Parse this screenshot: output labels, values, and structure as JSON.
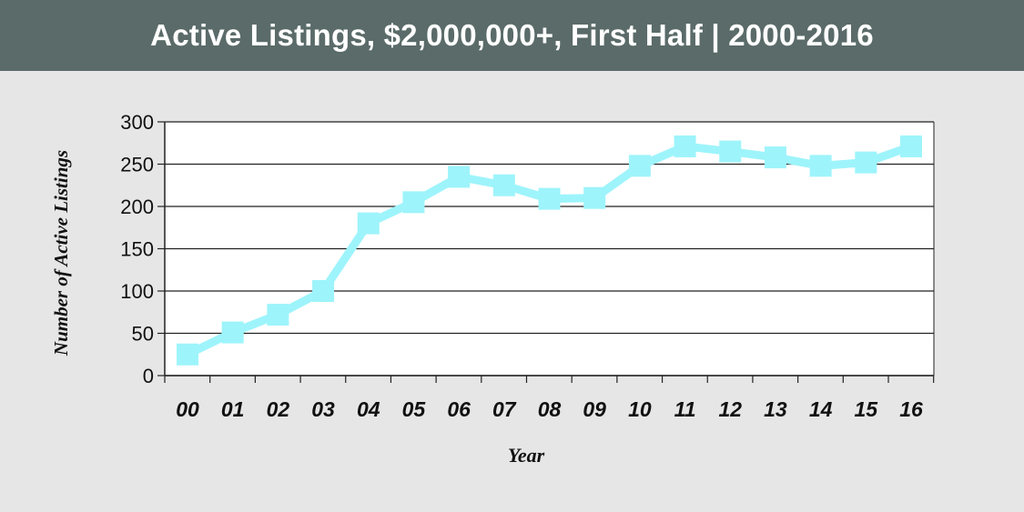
{
  "chart_data": {
    "type": "line",
    "title": "Active Listings, $2,000,000+, First Half | 2000-2016",
    "xlabel": "Year",
    "ylabel": "Number of Active Listings",
    "categories": [
      "00",
      "01",
      "02",
      "03",
      "04",
      "05",
      "06",
      "07",
      "08",
      "09",
      "10",
      "11",
      "12",
      "13",
      "14",
      "15",
      "16"
    ],
    "values": [
      25,
      51,
      72,
      100,
      180,
      205,
      235,
      225,
      209,
      210,
      248,
      271,
      265,
      258,
      248,
      252,
      271
    ],
    "ylim": [
      0,
      300
    ],
    "yticks": [
      "0",
      "50",
      "100",
      "150",
      "200",
      "250",
      "300"
    ],
    "grid": "horizontal",
    "legend": "none",
    "colors": {
      "line": "#9ef4fb",
      "header_bg": "#5a6b69",
      "background": "#e6e6e6",
      "plot_bg": "#ffffff"
    }
  }
}
